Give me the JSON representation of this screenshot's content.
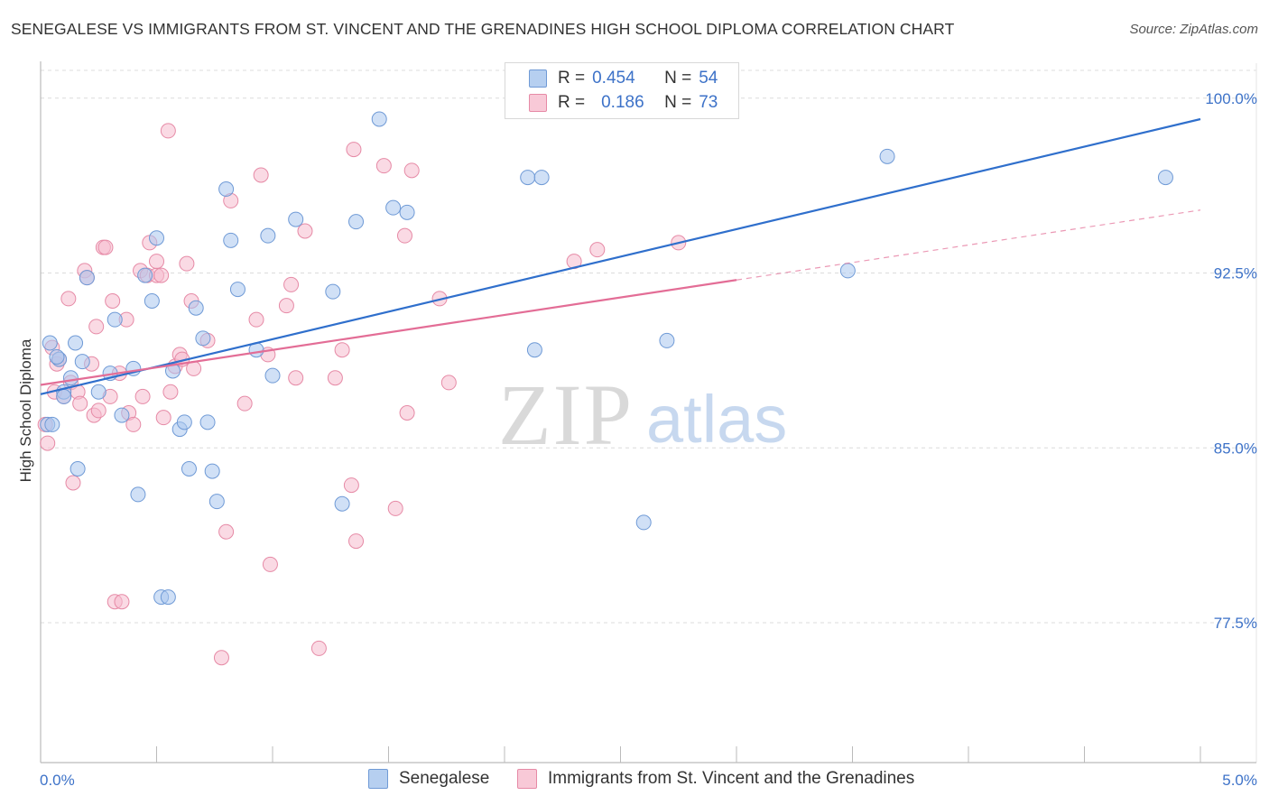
{
  "title": "SENEGALESE VS IMMIGRANTS FROM ST. VINCENT AND THE GRENADINES HIGH SCHOOL DIPLOMA CORRELATION CHART",
  "source": "Source: ZipAtlas.com",
  "watermark": {
    "zip": "ZIP",
    "atlas": "atlas"
  },
  "legend": {
    "rows": [
      {
        "r_label": "R =",
        "r_value": "0.454",
        "n_label": "N =",
        "n_value": "54"
      },
      {
        "r_label": "R =",
        "r_value": "0.186",
        "n_label": "N =",
        "n_value": "73"
      }
    ]
  },
  "colors": {
    "blue_fill": "#a9c6ee",
    "blue_stroke": "#6f9ad6",
    "blue_line": "#2f6fcc",
    "pink_fill": "#f6bccd",
    "pink_stroke": "#e68aa6",
    "pink_line": "#e36d96",
    "axis_label": "#3d72c8",
    "grid": "#dcdcdc"
  },
  "chart_data": {
    "type": "scatter",
    "title": "SENEGALESE VS IMMIGRANTS FROM ST. VINCENT AND THE GRENADINES HIGH SCHOOL DIPLOMA CORRELATION CHART",
    "xlabel": "",
    "ylabel": "High School Diploma",
    "xlim": [
      0.0,
      5.0
    ],
    "ylim": [
      71.5,
      101.5
    ],
    "x_tick_labels": [
      "0.0%",
      "5.0%"
    ],
    "y_ticks": [
      77.5,
      85.0,
      92.5,
      100.0
    ],
    "y_tick_labels": [
      "77.5%",
      "85.0%",
      "92.5%",
      "100.0%"
    ],
    "grid": true,
    "legend_position": "bottom",
    "series": [
      {
        "name": "Senegalese",
        "r": 0.454,
        "n": 54,
        "trend": {
          "x": [
            0.0,
            5.0
          ],
          "y": [
            87.3,
            99.1
          ]
        },
        "points": [
          [
            0.03,
            86.0
          ],
          [
            0.04,
            89.5
          ],
          [
            0.05,
            86.0
          ],
          [
            0.08,
            88.8
          ],
          [
            0.1,
            87.4
          ],
          [
            0.13,
            88.0
          ],
          [
            0.15,
            89.5
          ],
          [
            0.18,
            88.7
          ],
          [
            0.2,
            92.3
          ],
          [
            0.25,
            87.4
          ],
          [
            0.3,
            88.2
          ],
          [
            0.32,
            90.5
          ],
          [
            0.35,
            86.4
          ],
          [
            0.4,
            88.4
          ],
          [
            0.42,
            83.0
          ],
          [
            0.45,
            92.4
          ],
          [
            0.48,
            91.3
          ],
          [
            0.5,
            94.0
          ],
          [
            0.52,
            78.6
          ],
          [
            0.55,
            78.6
          ],
          [
            0.57,
            88.3
          ],
          [
            0.6,
            85.8
          ],
          [
            0.62,
            86.1
          ],
          [
            0.64,
            84.1
          ],
          [
            0.67,
            91.0
          ],
          [
            0.7,
            89.7
          ],
          [
            0.72,
            86.1
          ],
          [
            0.74,
            84.0
          ],
          [
            0.76,
            82.7
          ],
          [
            0.8,
            96.1
          ],
          [
            0.82,
            93.9
          ],
          [
            0.85,
            91.8
          ],
          [
            0.93,
            89.2
          ],
          [
            0.98,
            94.1
          ],
          [
            1.0,
            88.1
          ],
          [
            1.1,
            94.8
          ],
          [
            1.26,
            91.7
          ],
          [
            1.3,
            82.6
          ],
          [
            1.36,
            94.7
          ],
          [
            1.46,
            99.1
          ],
          [
            1.52,
            95.3
          ],
          [
            1.58,
            95.1
          ],
          [
            2.1,
            96.6
          ],
          [
            2.16,
            96.6
          ],
          [
            2.13,
            89.2
          ],
          [
            2.6,
            81.8
          ],
          [
            2.7,
            89.6
          ],
          [
            2.72,
            100.2
          ],
          [
            3.48,
            92.6
          ],
          [
            3.65,
            97.5
          ],
          [
            4.85,
            96.6
          ],
          [
            0.16,
            84.1
          ],
          [
            0.1,
            87.2
          ],
          [
            0.07,
            88.9
          ]
        ]
      },
      {
        "name": "Immigrants from St. Vincent and the Grenadines",
        "r": 0.186,
        "n": 73,
        "trend": {
          "x": [
            0.0,
            3.0
          ],
          "y": [
            87.7,
            92.2
          ]
        },
        "trend_dashed": {
          "x": [
            3.0,
            5.0
          ],
          "y": [
            92.2,
            95.2
          ]
        },
        "points": [
          [
            0.02,
            86.0
          ],
          [
            0.03,
            85.2
          ],
          [
            0.05,
            89.3
          ],
          [
            0.06,
            87.4
          ],
          [
            0.07,
            88.6
          ],
          [
            0.08,
            88.8
          ],
          [
            0.1,
            87.2
          ],
          [
            0.12,
            91.4
          ],
          [
            0.13,
            87.8
          ],
          [
            0.14,
            83.5
          ],
          [
            0.16,
            87.4
          ],
          [
            0.17,
            86.9
          ],
          [
            0.19,
            92.6
          ],
          [
            0.2,
            92.3
          ],
          [
            0.22,
            88.6
          ],
          [
            0.23,
            86.4
          ],
          [
            0.24,
            90.2
          ],
          [
            0.25,
            86.6
          ],
          [
            0.27,
            93.6
          ],
          [
            0.28,
            93.6
          ],
          [
            0.3,
            87.2
          ],
          [
            0.31,
            91.3
          ],
          [
            0.32,
            78.4
          ],
          [
            0.34,
            88.2
          ],
          [
            0.35,
            78.4
          ],
          [
            0.37,
            90.5
          ],
          [
            0.38,
            86.5
          ],
          [
            0.4,
            86.0
          ],
          [
            0.43,
            92.6
          ],
          [
            0.44,
            87.2
          ],
          [
            0.46,
            92.4
          ],
          [
            0.47,
            93.8
          ],
          [
            0.5,
            92.4
          ],
          [
            0.5,
            93.0
          ],
          [
            0.52,
            92.4
          ],
          [
            0.53,
            86.3
          ],
          [
            0.55,
            98.6
          ],
          [
            0.56,
            87.4
          ],
          [
            0.58,
            88.5
          ],
          [
            0.6,
            89.0
          ],
          [
            0.61,
            88.8
          ],
          [
            0.63,
            92.9
          ],
          [
            0.65,
            91.3
          ],
          [
            0.66,
            88.4
          ],
          [
            0.72,
            89.6
          ],
          [
            0.78,
            76.0
          ],
          [
            0.8,
            81.4
          ],
          [
            0.82,
            95.6
          ],
          [
            0.88,
            86.9
          ],
          [
            0.93,
            90.5
          ],
          [
            0.95,
            96.7
          ],
          [
            0.99,
            80.0
          ],
          [
            1.08,
            92.0
          ],
          [
            1.1,
            88.0
          ],
          [
            1.14,
            94.3
          ],
          [
            1.2,
            76.4
          ],
          [
            1.27,
            88.0
          ],
          [
            1.3,
            89.2
          ],
          [
            1.34,
            83.4
          ],
          [
            1.35,
            97.8
          ],
          [
            1.36,
            81.0
          ],
          [
            1.48,
            97.1
          ],
          [
            1.53,
            82.4
          ],
          [
            1.57,
            94.1
          ],
          [
            1.58,
            86.5
          ],
          [
            1.6,
            96.9
          ],
          [
            1.72,
            91.4
          ],
          [
            1.76,
            87.8
          ],
          [
            2.3,
            93.0
          ],
          [
            2.4,
            93.5
          ],
          [
            2.75,
            93.8
          ],
          [
            1.06,
            91.1
          ],
          [
            0.98,
            89.0
          ]
        ]
      }
    ]
  }
}
